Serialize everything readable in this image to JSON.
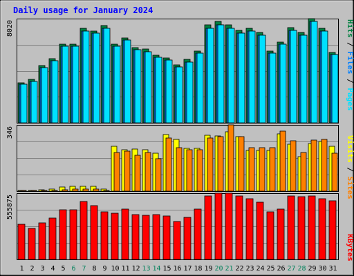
{
  "chart_data": {
    "type": "bar",
    "title": "Daily usage for January 2024",
    "categories": [
      "1",
      "2",
      "3",
      "4",
      "5",
      "6",
      "7",
      "8",
      "9",
      "10",
      "11",
      "12",
      "13",
      "14",
      "15",
      "16",
      "17",
      "18",
      "19",
      "20",
      "21",
      "22",
      "23",
      "24",
      "25",
      "26",
      "27",
      "28",
      "29",
      "30",
      "31"
    ],
    "weekend_days": [
      "6",
      "7",
      "13",
      "14",
      "20",
      "21",
      "27",
      "28"
    ],
    "panels": [
      {
        "id": "pages-files-hits",
        "ylabel_top_value": "8020",
        "ylim": [
          0,
          8020
        ],
        "series": [
          {
            "name": "Hits",
            "color": "#008040",
            "values": [
              3090,
              3330,
              4390,
              4920,
              6080,
              6080,
              7270,
              7060,
              7470,
              6080,
              6550,
              5810,
              5690,
              5210,
              5010,
              4460,
              4860,
              5540,
              7540,
              7810,
              7560,
              7130,
              7270,
              6960,
              5540,
              6230,
              7340,
              6960,
              8020,
              7270,
              5440
            ]
          },
          {
            "name": "Files",
            "color": "#0080ff",
            "values": [
              2950,
              3200,
              4240,
              4780,
              5900,
              5900,
              7050,
              6880,
              7270,
              5900,
              6350,
              5630,
              5490,
              5040,
              4840,
              4300,
              4700,
              5360,
              7300,
              7560,
              7300,
              6900,
              7040,
              6740,
              5360,
              6040,
              7110,
              6740,
              7800,
              7050,
              5260
            ]
          },
          {
            "name": "Pages",
            "color": "#00e0ff",
            "values": [
              2950,
              3200,
              4240,
              4780,
              5900,
              5900,
              7050,
              6880,
              7270,
              5900,
              6350,
              5630,
              5490,
              5040,
              4840,
              4300,
              4700,
              5360,
              7300,
              7560,
              7300,
              6900,
              7040,
              6740,
              5360,
              6040,
              7110,
              6740,
              7800,
              7050,
              5260
            ]
          }
        ]
      },
      {
        "id": "sites-visits",
        "ylabel_top_value": "346",
        "ylim": [
          0,
          346
        ],
        "series": [
          {
            "name": "Visits",
            "color": "#ffff00",
            "values": [
              3,
              3,
              8,
              12,
              20,
              26,
              26,
              26,
              12,
              234,
              218,
              220,
              218,
              197,
              294,
              272,
              224,
              224,
              292,
              288,
              310,
              286,
              214,
              214,
              214,
              298,
              245,
              179,
              250,
              258,
              234
            ]
          },
          {
            "name": "Sites",
            "color": "#ff8000",
            "values": [
              1,
              1,
              3,
              5,
              8,
              11,
              11,
              11,
              5,
              202,
              208,
              189,
              203,
              170,
              279,
              226,
              217,
              217,
              276,
              283,
              346,
              283,
              227,
              227,
              227,
              314,
              264,
              202,
              266,
              272,
              200
            ]
          }
        ]
      },
      {
        "id": "kbytes",
        "ylabel_top_value": "555875",
        "ylim": [
          0,
          555875
        ],
        "series": [
          {
            "name": "KBytes",
            "color": "#ff0000",
            "values": [
              298000,
              261000,
              304000,
              345000,
              416000,
              416000,
              488000,
              454000,
              397000,
              389000,
              422000,
              376000,
              371000,
              376000,
              365000,
              319000,
              351000,
              422000,
              530000,
              555875,
              555875,
              530000,
              510000,
              478000,
              401000,
              422000,
              535000,
              525000,
              530000,
              510000,
              495000
            ]
          }
        ]
      }
    ],
    "grid": true,
    "legend_placement": "right (vertical)",
    "background_color": "#c0c0c0",
    "border_color": "#000000",
    "title_color": "#0000ff",
    "separator_color": "#000000"
  }
}
